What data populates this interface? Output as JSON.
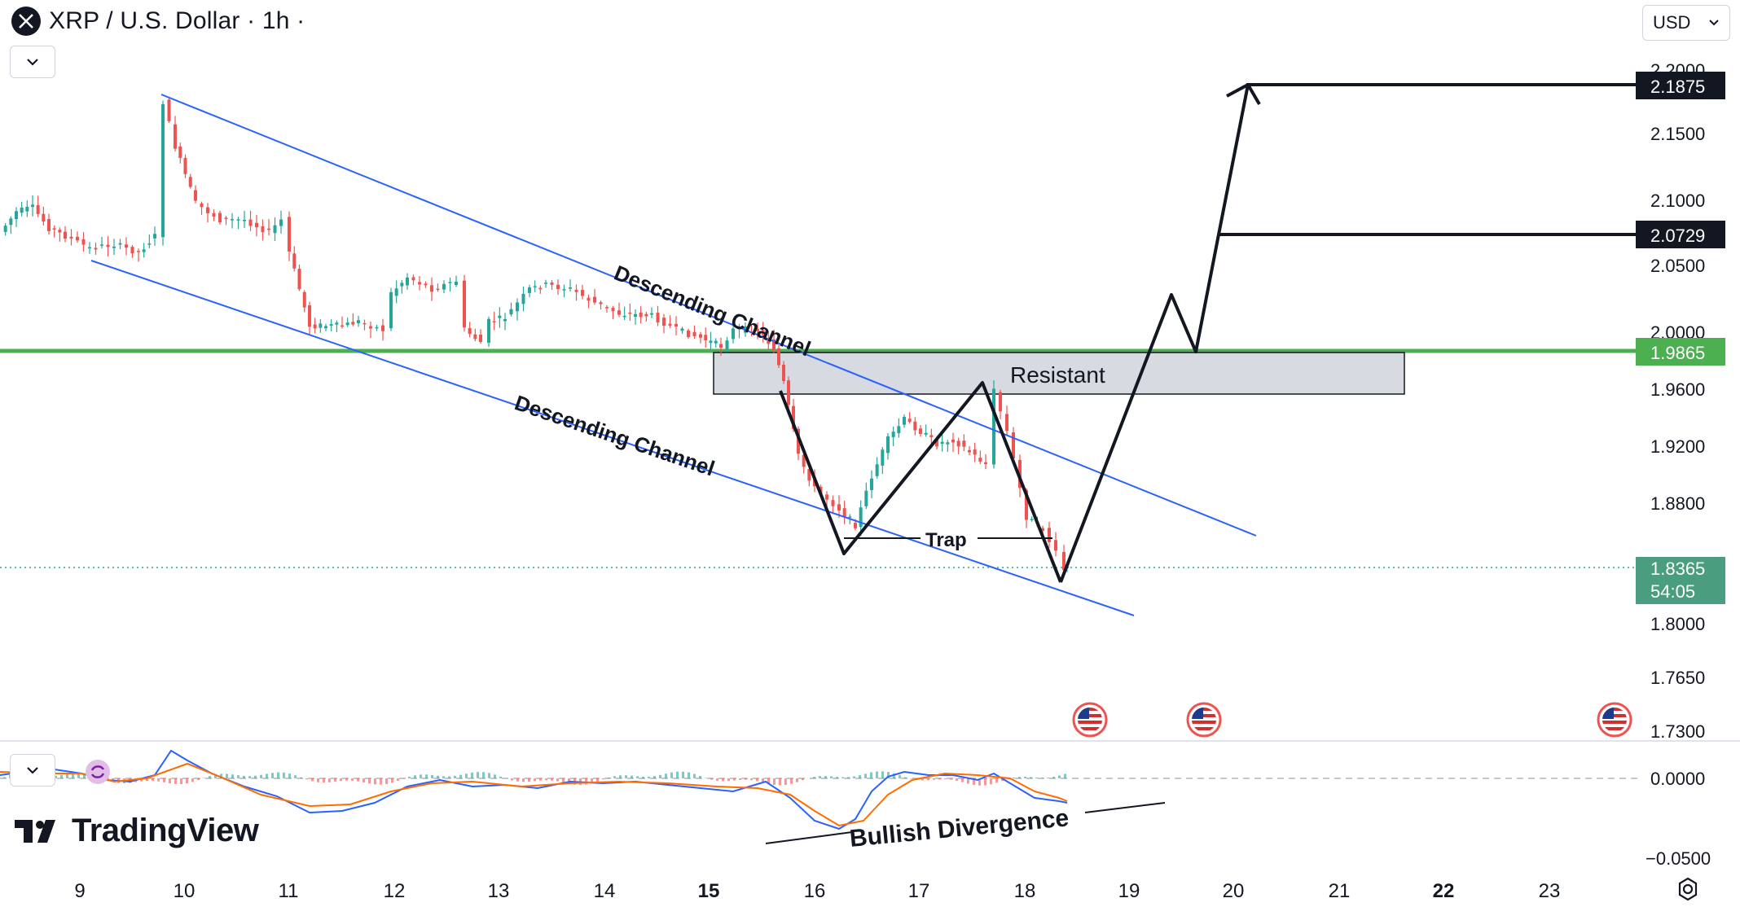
{
  "header": {
    "symbol_title": "XRP / U.S. Dollar · 1h ·",
    "currency": "USD"
  },
  "price_axis": {
    "labels": [
      "2.2000",
      "2.1500",
      "2.1000",
      "2.0500",
      "2.0000",
      "1.9600",
      "1.9200",
      "1.8800",
      "1.8000",
      "1.7650",
      "1.7300"
    ],
    "badges": [
      {
        "text": "2.1875",
        "bg": "#131722"
      },
      {
        "text": "2.0729",
        "bg": "#131722"
      },
      {
        "text": "1.9865",
        "bg": "#4caf50"
      }
    ],
    "current_price": "1.8365",
    "countdown": "54:05",
    "current_bg": "#4a9e7f"
  },
  "macd_axis": {
    "labels": [
      "0.0000",
      "−0.0500"
    ]
  },
  "time_axis": {
    "labels": [
      "9",
      "10",
      "11",
      "12",
      "13",
      "14",
      "15",
      "16",
      "17",
      "18",
      "19",
      "20",
      "21",
      "22",
      "23"
    ],
    "bold_labels": [
      "15",
      "22"
    ]
  },
  "annotations": {
    "channel_upper": "Descending Channel",
    "channel_lower": "Descending Channel",
    "resistant": "Resistant",
    "trap": "Trap",
    "bullish_divergence": "Bullish Divergence"
  },
  "colors": {
    "up_candle": "#26a69a",
    "down_candle": "#ef5350",
    "channel_line": "#2962ff",
    "support_line": "#4caf50",
    "macd_line": "#2962ff",
    "signal_line": "#ff6d00"
  },
  "icons": {
    "event_flags": "us-flag-icon",
    "brand": "tradingview-logo-icon"
  },
  "branding": "TradingView"
}
